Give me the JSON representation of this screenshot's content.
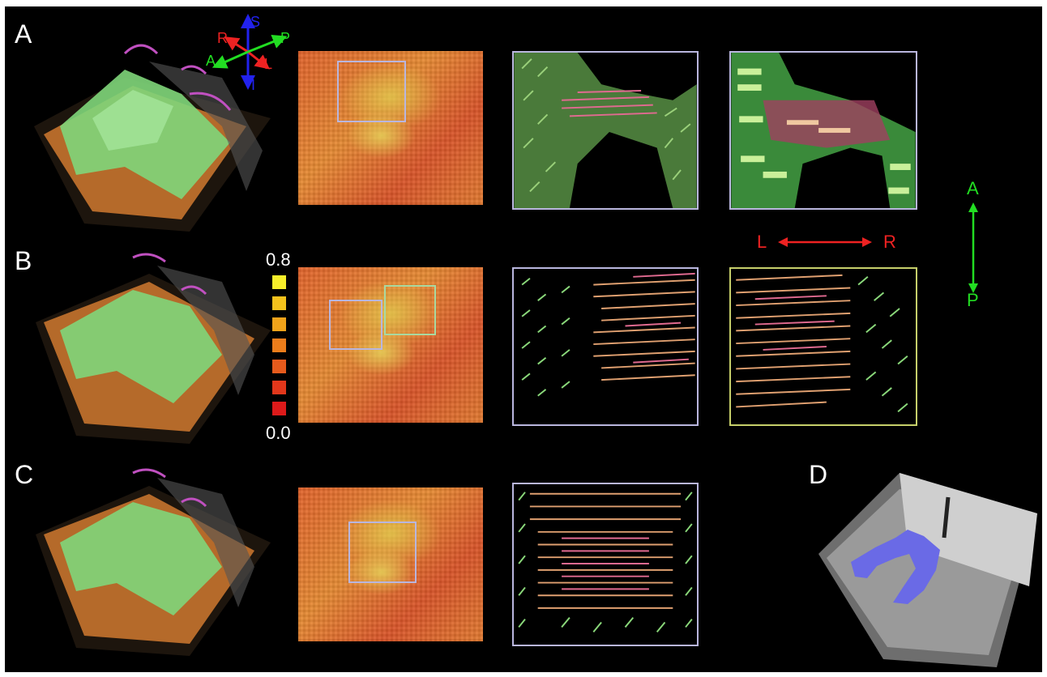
{
  "panels": {
    "a": {
      "letter": "A"
    },
    "b": {
      "letter": "B"
    },
    "c": {
      "letter": "C"
    },
    "d": {
      "letter": "D"
    }
  },
  "orientation_3d": {
    "s": "S",
    "i": "I",
    "r": "R",
    "l": "L",
    "a": "A",
    "p": "P",
    "colors": {
      "si": "#2222ee",
      "rl": "#ee2222",
      "ap": "#22dd22"
    }
  },
  "orientation_2d": {
    "l": "L",
    "r": "R",
    "a": "A",
    "p": "P",
    "colors": {
      "lr": "#ee2222",
      "ap": "#22dd22"
    }
  },
  "colorbar": {
    "max_label": "0.8",
    "min_label": "0.0",
    "swatch_colors": [
      "#f7ee2a",
      "#f4c21c",
      "#f1a31a",
      "#ec7d1b",
      "#e65a1c",
      "#e2371b",
      "#dd1a1a"
    ]
  },
  "colors": {
    "background": "#000000",
    "roi_lavender": "#b9b6de",
    "roi_yellow": "#c6cf6a"
  }
}
